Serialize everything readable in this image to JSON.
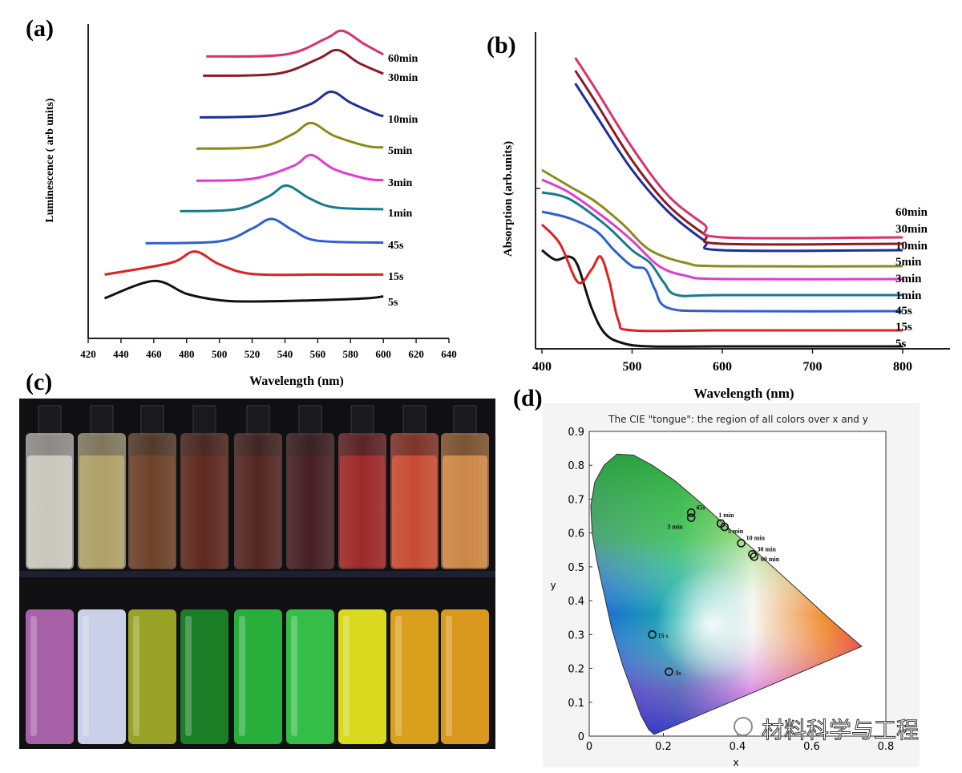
{
  "panels": {
    "a": {
      "label": "(a)",
      "ylabel": "Luminescence ( arb units)",
      "xlabel": "Wavelength (nm)",
      "xticks": [
        "420",
        "440",
        "460",
        "480",
        "500",
        "520",
        "540",
        "560",
        "580",
        "600",
        "620",
        "640"
      ]
    },
    "b": {
      "label": "(b)",
      "ylabel": "Absorption (arb.units)",
      "xlabel": "Wavelength (nm)",
      "xticks": [
        "400",
        "500",
        "600",
        "700",
        "800"
      ]
    },
    "c": {
      "label": "(c)"
    },
    "d": {
      "label": "(d)",
      "title": "The CIE \"tongue\": the region of all colors over x and y",
      "xlabel": "x",
      "ylabel": "y",
      "xticks": [
        "0",
        "0.2",
        "0.4",
        "0.6",
        "0.8"
      ],
      "yticks": [
        "0",
        "0.1",
        "0.2",
        "0.3",
        "0.4",
        "0.5",
        "0.6",
        "0.7",
        "0.8",
        "0.9"
      ]
    }
  },
  "watermark": "材料科学与工程",
  "chart_data": [
    {
      "type": "line",
      "panel": "a",
      "ylabel": "Luminescence ( arb units)",
      "xlabel": "Wavelength (nm)",
      "xlim": [
        420,
        640
      ],
      "series": [
        {
          "name": "5s",
          "color": "#111111",
          "x": [
            430,
            460,
            480,
            500,
            520,
            560,
            590,
            600
          ],
          "y": [
            0.05,
            0.32,
            0.12,
            0.02,
            0.0,
            0.02,
            0.05,
            0.08
          ]
        },
        {
          "name": "15s",
          "color": "#e02020",
          "x": [
            430,
            470,
            485,
            500,
            520,
            560,
            600
          ],
          "y": [
            0.02,
            0.2,
            0.38,
            0.18,
            0.03,
            0.02,
            0.02
          ]
        },
        {
          "name": "45s",
          "color": "#2e5fd0",
          "x": [
            455,
            500,
            520,
            532,
            545,
            560,
            600
          ],
          "y": [
            0.02,
            0.05,
            0.25,
            0.4,
            0.22,
            0.06,
            0.03
          ]
        },
        {
          "name": "1min",
          "color": "#167b8c",
          "x": [
            476,
            510,
            530,
            541,
            555,
            570,
            600
          ],
          "y": [
            0.02,
            0.05,
            0.25,
            0.42,
            0.22,
            0.08,
            0.05
          ]
        },
        {
          "name": "3min",
          "color": "#e23ad0",
          "x": [
            486,
            520,
            545,
            556,
            570,
            590,
            600
          ],
          "y": [
            0.02,
            0.05,
            0.25,
            0.42,
            0.2,
            0.05,
            0.03
          ]
        },
        {
          "name": "5min",
          "color": "#8c8a1c",
          "x": [
            486,
            525,
            545,
            556,
            570,
            590,
            600
          ],
          "y": [
            0.02,
            0.05,
            0.25,
            0.42,
            0.22,
            0.06,
            0.04
          ]
        },
        {
          "name": "10min",
          "color": "#1c2f9a",
          "x": [
            488,
            530,
            555,
            568,
            580,
            595,
            600
          ],
          "y": [
            0.02,
            0.05,
            0.22,
            0.42,
            0.25,
            0.08,
            0.04
          ]
        },
        {
          "name": "30min",
          "color": "#8c1a24",
          "x": [
            490,
            535,
            560,
            572,
            585,
            600
          ],
          "y": [
            0.02,
            0.05,
            0.28,
            0.42,
            0.22,
            0.05
          ]
        },
        {
          "name": "60min",
          "color": "#d8336e",
          "x": [
            492,
            540,
            565,
            575,
            588,
            600
          ],
          "y": [
            0.02,
            0.05,
            0.3,
            0.42,
            0.22,
            0.05
          ]
        }
      ]
    },
    {
      "type": "line",
      "panel": "b",
      "ylabel": "Absorption (arb.units)",
      "xlabel": "Wavelength (nm)",
      "xlim": [
        400,
        850
      ],
      "series": [
        {
          "name": "5s",
          "color": "#111111",
          "x": [
            400,
            415,
            430,
            440,
            455,
            470,
            490,
            520,
            600,
            800
          ],
          "y": [
            0.3,
            0.27,
            0.28,
            0.25,
            0.12,
            0.04,
            0.01,
            0.0,
            0.0,
            0.0
          ]
        },
        {
          "name": "15s",
          "color": "#e02020",
          "x": [
            400,
            420,
            440,
            455,
            465,
            475,
            485,
            500,
            600,
            800
          ],
          "y": [
            0.38,
            0.32,
            0.2,
            0.24,
            0.28,
            0.2,
            0.08,
            0.05,
            0.05,
            0.05
          ]
        },
        {
          "name": "45s",
          "color": "#2e5fd0",
          "x": [
            400,
            430,
            460,
            480,
            500,
            515,
            525,
            540,
            600,
            800
          ],
          "y": [
            0.42,
            0.4,
            0.36,
            0.3,
            0.25,
            0.24,
            0.18,
            0.12,
            0.11,
            0.11
          ]
        },
        {
          "name": "1min",
          "color": "#167b8c",
          "x": [
            400,
            430,
            470,
            500,
            520,
            535,
            550,
            600,
            800
          ],
          "y": [
            0.48,
            0.46,
            0.38,
            0.3,
            0.26,
            0.2,
            0.16,
            0.16,
            0.16
          ]
        },
        {
          "name": "3min",
          "color": "#e23ad0",
          "x": [
            400,
            430,
            470,
            500,
            530,
            560,
            600,
            800
          ],
          "y": [
            0.52,
            0.48,
            0.4,
            0.33,
            0.25,
            0.22,
            0.21,
            0.21
          ]
        },
        {
          "name": "5min",
          "color": "#8c8a1c",
          "x": [
            400,
            430,
            460,
            490,
            520,
            560,
            600,
            800
          ],
          "y": [
            0.55,
            0.5,
            0.45,
            0.38,
            0.3,
            0.26,
            0.25,
            0.25
          ]
        },
        {
          "name": "10min",
          "color": "#1c2f9a",
          "x": [
            437,
            460,
            500,
            540,
            580,
            600,
            800
          ],
          "y": [
            0.82,
            0.72,
            0.55,
            0.42,
            0.33,
            0.3,
            0.3
          ]
        },
        {
          "name": "30min",
          "color": "#8c1a24",
          "x": [
            437,
            460,
            500,
            540,
            580,
            600,
            800
          ],
          "y": [
            0.86,
            0.76,
            0.58,
            0.44,
            0.35,
            0.32,
            0.32
          ]
        },
        {
          "name": "60min",
          "color": "#d8336e",
          "x": [
            437,
            460,
            500,
            540,
            580,
            600,
            800
          ],
          "y": [
            0.9,
            0.8,
            0.62,
            0.47,
            0.38,
            0.34,
            0.34
          ]
        }
      ]
    },
    {
      "type": "scatter",
      "panel": "d",
      "title": "The CIE \"tongue\": the region of all colors over x and y",
      "xlabel": "x",
      "ylabel": "y",
      "xlim": [
        0,
        0.8
      ],
      "ylim": [
        0,
        0.9
      ],
      "points": [
        {
          "label": "5s",
          "x": 0.215,
          "y": 0.19
        },
        {
          "label": "15 s",
          "x": 0.17,
          "y": 0.3
        },
        {
          "label": "45s",
          "x": 0.275,
          "y": 0.66
        },
        {
          "label": "3 min",
          "x": 0.275,
          "y": 0.645
        },
        {
          "label": "1 min",
          "x": 0.355,
          "y": 0.628
        },
        {
          "label": "5 min",
          "x": 0.365,
          "y": 0.618
        },
        {
          "label": "10 min",
          "x": 0.41,
          "y": 0.57
        },
        {
          "label": "30 min",
          "x": 0.44,
          "y": 0.537
        },
        {
          "label": "60 min",
          "x": 0.445,
          "y": 0.53
        }
      ]
    }
  ]
}
